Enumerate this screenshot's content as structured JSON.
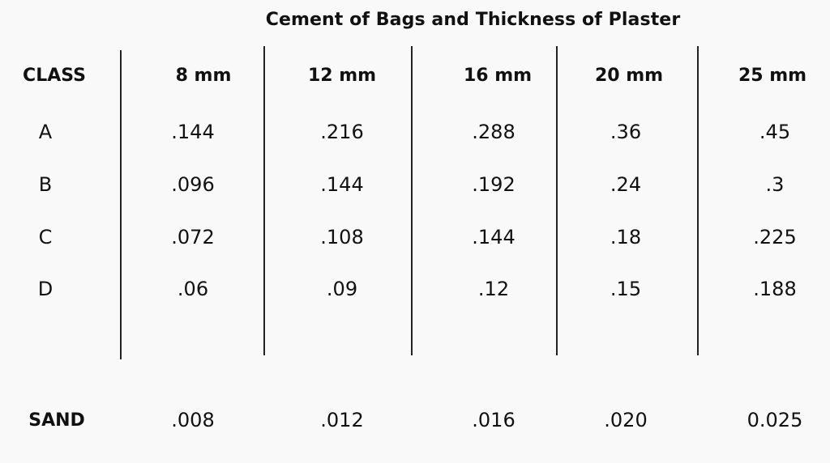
{
  "title": "Cement of Bags and Thickness of Plaster",
  "headers": [
    "CLASS",
    "8 mm",
    "12 mm",
    "16 mm",
    "20 mm",
    "25 mm"
  ],
  "rows": [
    {
      "class": "A",
      "values": [
        ".144",
        ".216",
        ".288",
        ".36",
        ".45"
      ]
    },
    {
      "class": "B",
      "values": [
        ".096",
        ".144",
        ".192",
        ".24",
        ".3"
      ]
    },
    {
      "class": "C",
      "values": [
        ".072",
        ".108",
        ".144",
        ".18",
        ".225"
      ]
    },
    {
      "class": "D",
      "values": [
        ".06",
        ".09",
        ".12",
        ".15",
        ".188"
      ]
    }
  ],
  "sand": {
    "label": "SAND",
    "values": [
      ".008",
      ".012",
      ".016",
      ".020",
      "0.025"
    ]
  }
}
